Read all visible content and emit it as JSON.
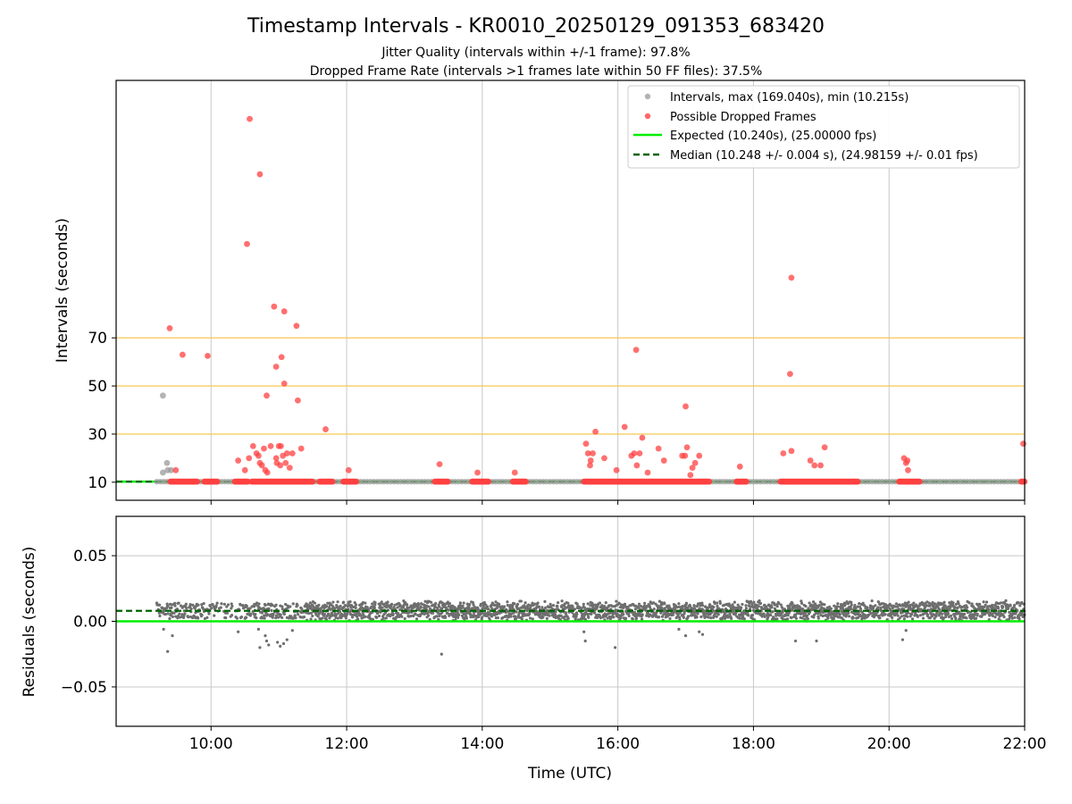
{
  "header": {
    "title": "Timestamp Intervals - KR0010_20250129_091353_683420",
    "subtitle_1": "Jitter Quality (intervals within +/-1 frame): 97.8%",
    "subtitle_2": "Dropped Frame Rate (intervals >1 frames late within 50 FF files): 37.5%"
  },
  "chart_data": [
    {
      "type": "scatter",
      "ylabel": "Intervals (seconds)",
      "xlabel": "",
      "x_unit": "hours UTC",
      "xlim": [
        8.6,
        22.0
      ],
      "ylim": [
        2.5,
        177
      ],
      "yticks": [
        10,
        30,
        50,
        70
      ],
      "xticks": [
        "10:00",
        "12:00",
        "14:00",
        "16:00",
        "18:00",
        "20:00",
        "22:00"
      ],
      "xtick_values": [
        10,
        12,
        14,
        16,
        18,
        20,
        22
      ],
      "grid": "vertical",
      "threshold_lines": {
        "values": [
          30,
          50,
          70
        ],
        "color": "#f5c242"
      },
      "legend_position": "top-right",
      "legend": [
        "Intervals, max (169.040s), min (10.215s)",
        "Possible Dropped Frames",
        "Expected (10.240s), (25.00000 fps)",
        "Median (10.248 +/- 0.004 s), (24.98159 +/- 0.01 fps)"
      ],
      "series": [
        {
          "name": "Intervals, max (169.040s), min (10.215s)",
          "color": "#999999",
          "points": [
            [
              9.29,
              46
            ],
            [
              9.29,
              14
            ],
            [
              9.35,
              18
            ],
            [
              9.36,
              15
            ],
            [
              9.41,
              15
            ]
          ]
        },
        {
          "name": "Possible Dropped Frames",
          "color": "#ff4040",
          "points": [
            [
              10.57,
              161
            ],
            [
              10.72,
              138
            ],
            [
              10.53,
              109
            ],
            [
              10.93,
              83
            ],
            [
              11.08,
              81
            ],
            [
              11.26,
              75
            ],
            [
              9.39,
              74
            ],
            [
              9.58,
              63
            ],
            [
              9.95,
              62.5
            ],
            [
              11.04,
              62
            ],
            [
              10.96,
              58
            ],
            [
              11.08,
              51
            ],
            [
              10.82,
              46
            ],
            [
              11.28,
              44
            ],
            [
              18.56,
              95
            ],
            [
              18.54,
              55
            ],
            [
              16.27,
              65
            ],
            [
              16.1,
              33
            ],
            [
              15.67,
              31
            ],
            [
              17.0,
              41.5
            ],
            [
              11.69,
              32
            ],
            [
              10.4,
              19
            ],
            [
              10.5,
              15
            ],
            [
              10.56,
              20
            ],
            [
              10.62,
              25
            ],
            [
              10.67,
              22
            ],
            [
              10.72,
              18
            ],
            [
              10.78,
              24
            ],
            [
              10.8,
              15
            ],
            [
              10.83,
              14
            ],
            [
              10.88,
              25
            ],
            [
              10.96,
              20
            ],
            [
              11.0,
              25
            ],
            [
              11.03,
              25
            ],
            [
              11.06,
              21
            ],
            [
              11.1,
              18
            ],
            [
              11.12,
              22
            ],
            [
              11.16,
              16
            ],
            [
              11.2,
              22
            ],
            [
              11.33,
              24
            ],
            [
              10.7,
              21
            ],
            [
              10.75,
              17
            ],
            [
              10.97,
              18
            ],
            [
              11.02,
              17
            ],
            [
              9.48,
              15
            ],
            [
              12.03,
              15
            ],
            [
              13.37,
              17.5
            ],
            [
              13.93,
              14
            ],
            [
              14.48,
              14
            ],
            [
              15.53,
              26
            ],
            [
              15.56,
              22
            ],
            [
              15.6,
              19
            ],
            [
              15.63,
              22
            ],
            [
              15.59,
              17
            ],
            [
              15.8,
              20
            ],
            [
              15.98,
              15
            ],
            [
              16.2,
              21
            ],
            [
              16.24,
              22
            ],
            [
              16.32,
              22
            ],
            [
              16.28,
              17
            ],
            [
              16.36,
              28.5
            ],
            [
              16.44,
              14
            ],
            [
              16.6,
              24
            ],
            [
              16.68,
              19
            ],
            [
              16.95,
              21
            ],
            [
              16.99,
              21
            ],
            [
              17.02,
              24.5
            ],
            [
              17.07,
              13
            ],
            [
              17.1,
              16
            ],
            [
              17.14,
              18
            ],
            [
              17.2,
              21
            ],
            [
              17.8,
              16.5
            ],
            [
              18.44,
              22
            ],
            [
              18.56,
              23
            ],
            [
              18.84,
              19
            ],
            [
              18.9,
              17
            ],
            [
              18.99,
              17
            ],
            [
              19.05,
              24.5
            ],
            [
              20.22,
              20
            ],
            [
              20.25,
              18
            ],
            [
              20.27,
              19
            ],
            [
              20.28,
              15
            ],
            [
              21.98,
              26
            ]
          ],
          "baseline_clusters": {
            "y": 10.24,
            "x_ranges": [
              [
                9.4,
                9.8
              ],
              [
                9.9,
                10.1
              ],
              [
                10.35,
                10.55
              ],
              [
                10.6,
                11.5
              ],
              [
                11.6,
                11.8
              ],
              [
                11.95,
                12.15
              ],
              [
                13.3,
                13.5
              ],
              [
                13.85,
                14.1
              ],
              [
                14.45,
                14.65
              ],
              [
                15.5,
                17.35
              ],
              [
                17.75,
                17.9
              ],
              [
                18.4,
                19.55
              ],
              [
                20.15,
                20.45
              ],
              [
                21.95,
                22.0
              ]
            ]
          }
        },
        {
          "name": "Expected (10.240s), (25.00000 fps)",
          "color": "#00ee00",
          "type": "hline",
          "y": 10.24
        },
        {
          "name": "Median (10.248 +/- 0.004 s), (24.98159 +/- 0.01 fps)",
          "color": "#006400",
          "type": "hline-dashed",
          "y": 10.248
        }
      ]
    },
    {
      "type": "scatter",
      "ylabel": "Residuals (seconds)",
      "xlabel": "Time (UTC)",
      "xlim": [
        8.6,
        22.0
      ],
      "ylim": [
        -0.08,
        0.08
      ],
      "yticks": [
        "0.05",
        "0.00",
        "−0.05"
      ],
      "ytick_values": [
        0.05,
        0.0,
        -0.05
      ],
      "xticks": [
        "10:00",
        "12:00",
        "14:00",
        "16:00",
        "18:00",
        "20:00",
        "22:00"
      ],
      "xtick_values": [
        10,
        12,
        14,
        16,
        18,
        20,
        22
      ],
      "grid": "both",
      "series": [
        {
          "name": "",
          "color": "#6e6e6e",
          "band": {
            "x_range": [
              9.2,
              22.0
            ],
            "y_range": [
              0.0,
              0.016
            ],
            "center": 0.008
          },
          "outliers": [
            [
              9.3,
              -0.006
            ],
            [
              9.36,
              -0.023
            ],
            [
              9.43,
              -0.011
            ],
            [
              10.4,
              -0.008
            ],
            [
              10.7,
              -0.006
            ],
            [
              10.72,
              -0.02
            ],
            [
              10.8,
              -0.011
            ],
            [
              10.82,
              -0.015
            ],
            [
              10.85,
              -0.018
            ],
            [
              10.98,
              -0.016
            ],
            [
              11.02,
              -0.019
            ],
            [
              11.07,
              -0.017
            ],
            [
              11.12,
              -0.014
            ],
            [
              11.2,
              -0.007
            ],
            [
              13.4,
              -0.025
            ],
            [
              15.5,
              -0.008
            ],
            [
              15.52,
              -0.015
            ],
            [
              15.96,
              -0.02
            ],
            [
              16.9,
              -0.006
            ],
            [
              17.0,
              -0.011
            ],
            [
              17.2,
              -0.008
            ],
            [
              17.25,
              -0.01
            ],
            [
              18.62,
              -0.015
            ],
            [
              18.93,
              -0.015
            ],
            [
              20.2,
              -0.014
            ],
            [
              20.25,
              -0.007
            ]
          ]
        },
        {
          "name": "",
          "color": "#00ee00",
          "type": "hline",
          "y": 0.0
        },
        {
          "name": "",
          "color": "#006400",
          "type": "hline-dashed",
          "y": 0.008
        }
      ]
    }
  ]
}
